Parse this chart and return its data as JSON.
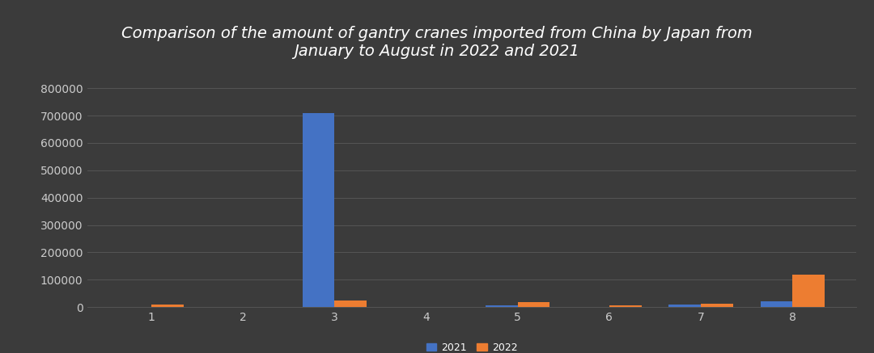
{
  "title": "Comparison of the amount of gantry cranes imported from China by Japan from\nJanuary to August in 2022 and 2021",
  "months": [
    1,
    2,
    3,
    4,
    5,
    6,
    7,
    8
  ],
  "values_2021": [
    0,
    0,
    710000,
    0,
    5000,
    0,
    10000,
    20000
  ],
  "values_2022": [
    8000,
    0,
    25000,
    0,
    18000,
    5000,
    13000,
    120000
  ],
  "color_2021": "#4472c4",
  "color_2022": "#ed7d31",
  "background_color": "#3b3b3b",
  "axes_background": "#3b3b3b",
  "grid_color": "#5a5a5a",
  "text_color": "#ffffff",
  "tick_color": "#cccccc",
  "ylim": [
    0,
    800000
  ],
  "yticks": [
    0,
    100000,
    200000,
    300000,
    400000,
    500000,
    600000,
    700000,
    800000
  ],
  "bar_width": 0.35,
  "legend_labels": [
    "2021",
    "2022"
  ],
  "title_fontsize": 14,
  "tick_fontsize": 10,
  "legend_fontsize": 9
}
